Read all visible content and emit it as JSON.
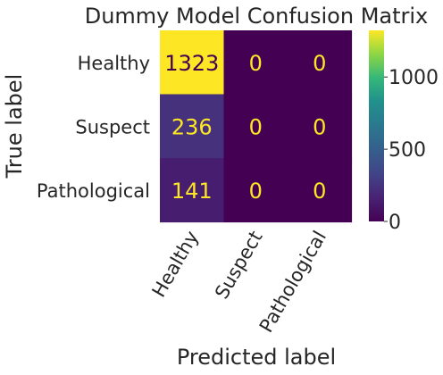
{
  "chart_data": {
    "type": "heatmap",
    "title": "Dummy Model Confusion Matrix",
    "xlabel": "Predicted label",
    "ylabel": "True label",
    "row_labels": [
      "Healthy",
      "Suspect",
      "Pathological"
    ],
    "col_labels": [
      "Healthy",
      "Suspect",
      "Pathological"
    ],
    "values": [
      [
        1323,
        0,
        0
      ],
      [
        236,
        0,
        0
      ],
      [
        141,
        0,
        0
      ]
    ],
    "colormap": "viridis",
    "colorbar": {
      "range": [
        0,
        1323
      ],
      "ticks": [
        0,
        500,
        1000
      ],
      "tick_labels": [
        "0",
        "500",
        "1000"
      ]
    },
    "grid": false,
    "legend": "colorbar-right"
  }
}
